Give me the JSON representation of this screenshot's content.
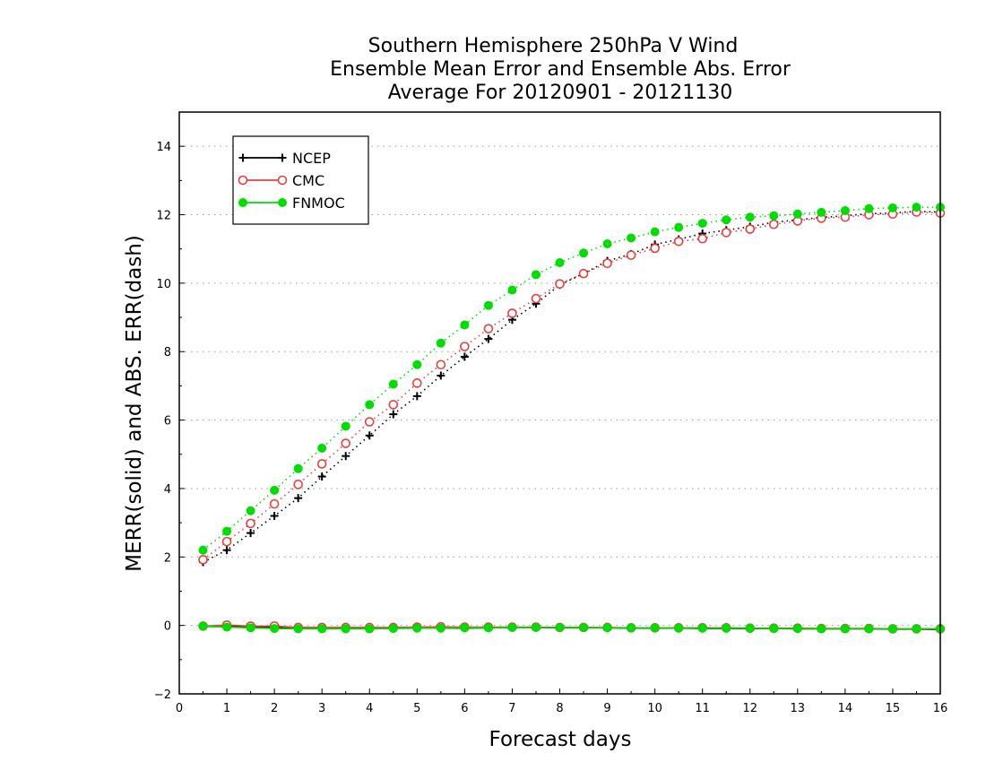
{
  "chart_data": {
    "type": "line",
    "title_lines": [
      "Southern Hemisphere 250hPa V Wind",
      "Ensemble Mean Error and Ensemble Abs. Error",
      "Average For 20120901 - 20121130"
    ],
    "xlabel": "Forecast days",
    "ylabel": "MERR(solid) and ABS. ERR(dash)",
    "xlim": [
      0,
      16
    ],
    "ylim": [
      -2,
      15
    ],
    "xticks": [
      "0",
      "1",
      "2",
      "3",
      "4",
      "5",
      "6",
      "7",
      "8",
      "9",
      "10",
      "11",
      "12",
      "13",
      "14",
      "15",
      "16"
    ],
    "yticks": [
      "-2",
      "0",
      "2",
      "4",
      "6",
      "8",
      "10",
      "12",
      "14"
    ],
    "grid": "horizontal dotted",
    "legend_position": "top-left",
    "x": [
      0.5,
      1,
      1.5,
      2,
      2.5,
      3,
      3.5,
      4,
      4.5,
      5,
      5.5,
      6,
      6.5,
      7,
      7.5,
      8,
      8.5,
      9,
      9.5,
      10,
      10.5,
      11,
      11.5,
      12,
      12.5,
      13,
      13.5,
      14,
      14.5,
      15,
      15.5,
      16
    ],
    "series": [
      {
        "name": "NCEP",
        "color": "#000000",
        "marker": "plus",
        "abs_err": [
          1.85,
          2.2,
          2.7,
          3.2,
          3.72,
          4.35,
          4.95,
          5.55,
          6.17,
          6.7,
          7.3,
          7.85,
          8.37,
          8.93,
          9.4,
          9.95,
          10.28,
          10.65,
          10.85,
          11.13,
          11.28,
          11.45,
          11.55,
          11.65,
          11.78,
          11.85,
          11.92,
          11.97,
          12.03,
          12.05,
          12.1,
          12.08
        ],
        "mean_err": [
          -0.03,
          -0.03,
          -0.04,
          -0.05,
          -0.06,
          -0.07,
          -0.07,
          -0.07,
          -0.08,
          -0.08,
          -0.08,
          -0.08,
          -0.07,
          -0.06,
          -0.06,
          -0.07,
          -0.07,
          -0.07,
          -0.08,
          -0.08,
          -0.08,
          -0.09,
          -0.09,
          -0.09,
          -0.09,
          -0.1,
          -0.1,
          -0.1,
          -0.1,
          -0.11,
          -0.11,
          -0.12
        ]
      },
      {
        "name": "CMC",
        "color": "#e84040",
        "marker": "circle",
        "abs_err": [
          1.92,
          2.45,
          2.98,
          3.55,
          4.12,
          4.72,
          5.32,
          5.95,
          6.45,
          7.08,
          7.62,
          8.15,
          8.67,
          9.12,
          9.55,
          9.98,
          10.28,
          10.58,
          10.82,
          11.02,
          11.22,
          11.3,
          11.48,
          11.58,
          11.72,
          11.82,
          11.9,
          11.93,
          12.0,
          12.02,
          12.08,
          12.05
        ],
        "mean_err": [
          -0.02,
          0.01,
          -0.02,
          -0.02,
          -0.06,
          -0.06,
          -0.06,
          -0.06,
          -0.06,
          -0.05,
          -0.04,
          -0.05,
          -0.05,
          -0.05,
          -0.05,
          -0.06,
          -0.06,
          -0.06,
          -0.07,
          -0.07,
          -0.07,
          -0.07,
          -0.07,
          -0.08,
          -0.08,
          -0.08,
          -0.09,
          -0.09,
          -0.09,
          -0.1,
          -0.1,
          -0.1
        ]
      },
      {
        "name": "FNMOC",
        "color": "#00dd00",
        "marker": "filled-circle",
        "abs_err": [
          2.2,
          2.75,
          3.35,
          3.95,
          4.58,
          5.18,
          5.82,
          6.45,
          7.05,
          7.62,
          8.25,
          8.78,
          9.35,
          9.8,
          10.25,
          10.6,
          10.88,
          11.15,
          11.32,
          11.5,
          11.63,
          11.75,
          11.85,
          11.93,
          11.97,
          12.02,
          12.07,
          12.12,
          12.18,
          12.2,
          12.22,
          12.22
        ],
        "mean_err": [
          -0.02,
          -0.05,
          -0.07,
          -0.09,
          -0.1,
          -0.1,
          -0.1,
          -0.1,
          -0.09,
          -0.08,
          -0.08,
          -0.07,
          -0.07,
          -0.06,
          -0.06,
          -0.06,
          -0.06,
          -0.07,
          -0.07,
          -0.07,
          -0.08,
          -0.08,
          -0.08,
          -0.08,
          -0.09,
          -0.09,
          -0.1,
          -0.1,
          -0.1,
          -0.1,
          -0.1,
          -0.1
        ]
      }
    ]
  }
}
